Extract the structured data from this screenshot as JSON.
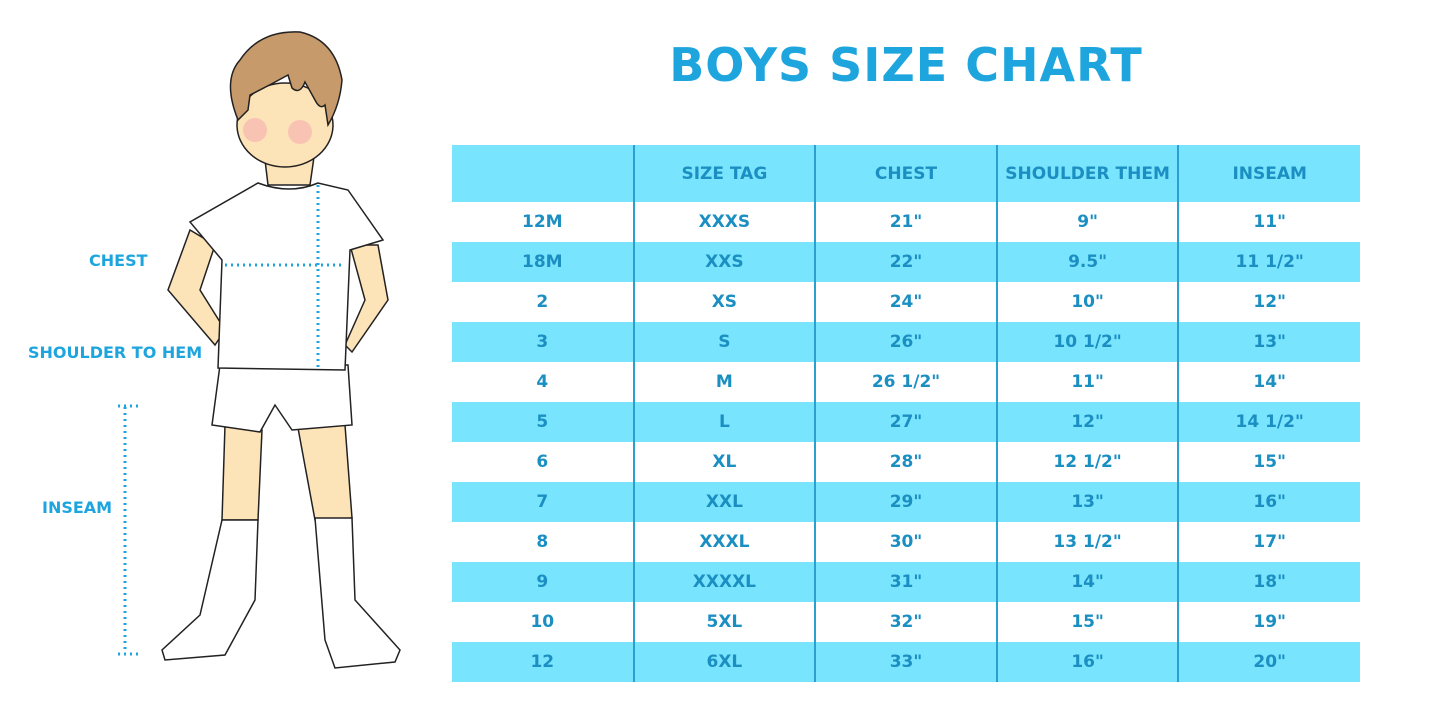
{
  "title": "BOYS SIZE CHART",
  "figure_labels": {
    "chest": "CHEST",
    "shoulder": "SHOULDER TO HEM",
    "inseam": "INSEAM"
  },
  "colors": {
    "accent": "#1ea5de",
    "row_highlight": "#78e4fd",
    "text": "#1b8fc2"
  },
  "table": {
    "headers": [
      "",
      "SIZE TAG",
      "CHEST",
      "SHOULDER THEM",
      "INSEAM"
    ],
    "rows": [
      [
        "12M",
        "XXXS",
        "21\"",
        "9\"",
        "11\""
      ],
      [
        "18M",
        "XXS",
        "22\"",
        "9.5\"",
        "11 1/2\""
      ],
      [
        "2",
        "XS",
        "24\"",
        "10\"",
        "12\""
      ],
      [
        "3",
        "S",
        "26\"",
        "10 1/2\"",
        "13\""
      ],
      [
        "4",
        "M",
        "26 1/2\"",
        "11\"",
        "14\""
      ],
      [
        "5",
        "L",
        "27\"",
        "12\"",
        "14 1/2\""
      ],
      [
        "6",
        "XL",
        "28\"",
        "12 1/2\"",
        "15\""
      ],
      [
        "7",
        "XXL",
        "29\"",
        "13\"",
        "16\""
      ],
      [
        "8",
        "XXXL",
        "30\"",
        "13 1/2\"",
        "17\""
      ],
      [
        "9",
        "XXXXL",
        "31\"",
        "14\"",
        "18\""
      ],
      [
        "10",
        "5XL",
        "32\"",
        "15\"",
        "19\""
      ],
      [
        "12",
        "6XL",
        "33\"",
        "16\"",
        "20\""
      ]
    ]
  }
}
